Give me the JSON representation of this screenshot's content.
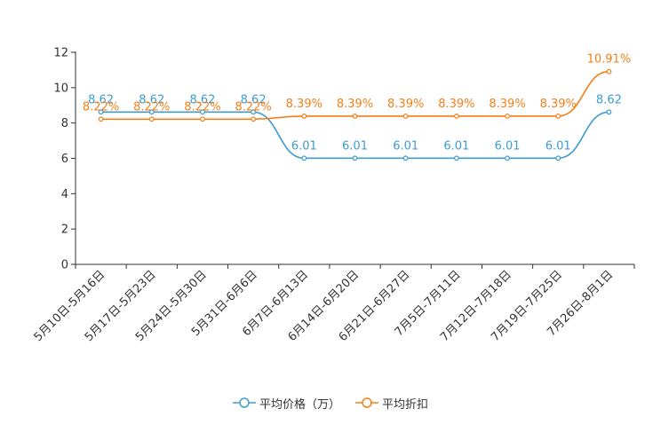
{
  "colors": {
    "price": "#3d9dd0",
    "discount": "#f57f17",
    "axis": "#333333"
  },
  "chart_data": {
    "type": "line",
    "categories": [
      "5月10日-5月16日",
      "5月17日-5月23日",
      "5月24日-5月30日",
      "5月31日-6月6日",
      "6月7日-6月13日",
      "6月14日-6月20日",
      "6月21日-6月27日",
      "7月5日-7月11日",
      "7月12日-7月18日",
      "7月19日-7月25日",
      "7月26日-8月1日"
    ],
    "ylim": [
      0,
      12
    ],
    "yticks": [
      "0",
      "2",
      "4",
      "6",
      "8",
      "10",
      "12"
    ],
    "series": [
      {
        "name": "平均价格（万）",
        "values": [
          8.62,
          8.62,
          8.62,
          8.62,
          6.01,
          6.01,
          6.01,
          6.01,
          6.01,
          6.01,
          8.62
        ],
        "labels": [
          "8.62",
          "8.62",
          "8.62",
          "8.62",
          "6.01",
          "6.01",
          "6.01",
          "6.01",
          "6.01",
          "6.01",
          "8.62"
        ]
      },
      {
        "name": "平均折扣",
        "values": [
          8.22,
          8.22,
          8.22,
          8.22,
          8.39,
          8.39,
          8.39,
          8.39,
          8.39,
          8.39,
          10.91
        ],
        "labels": [
          "8.22%",
          "8.22%",
          "8.22%",
          "8.22%",
          "8.39%",
          "8.39%",
          "8.39%",
          "8.39%",
          "8.39%",
          "8.39%",
          "10.91%"
        ]
      }
    ]
  }
}
